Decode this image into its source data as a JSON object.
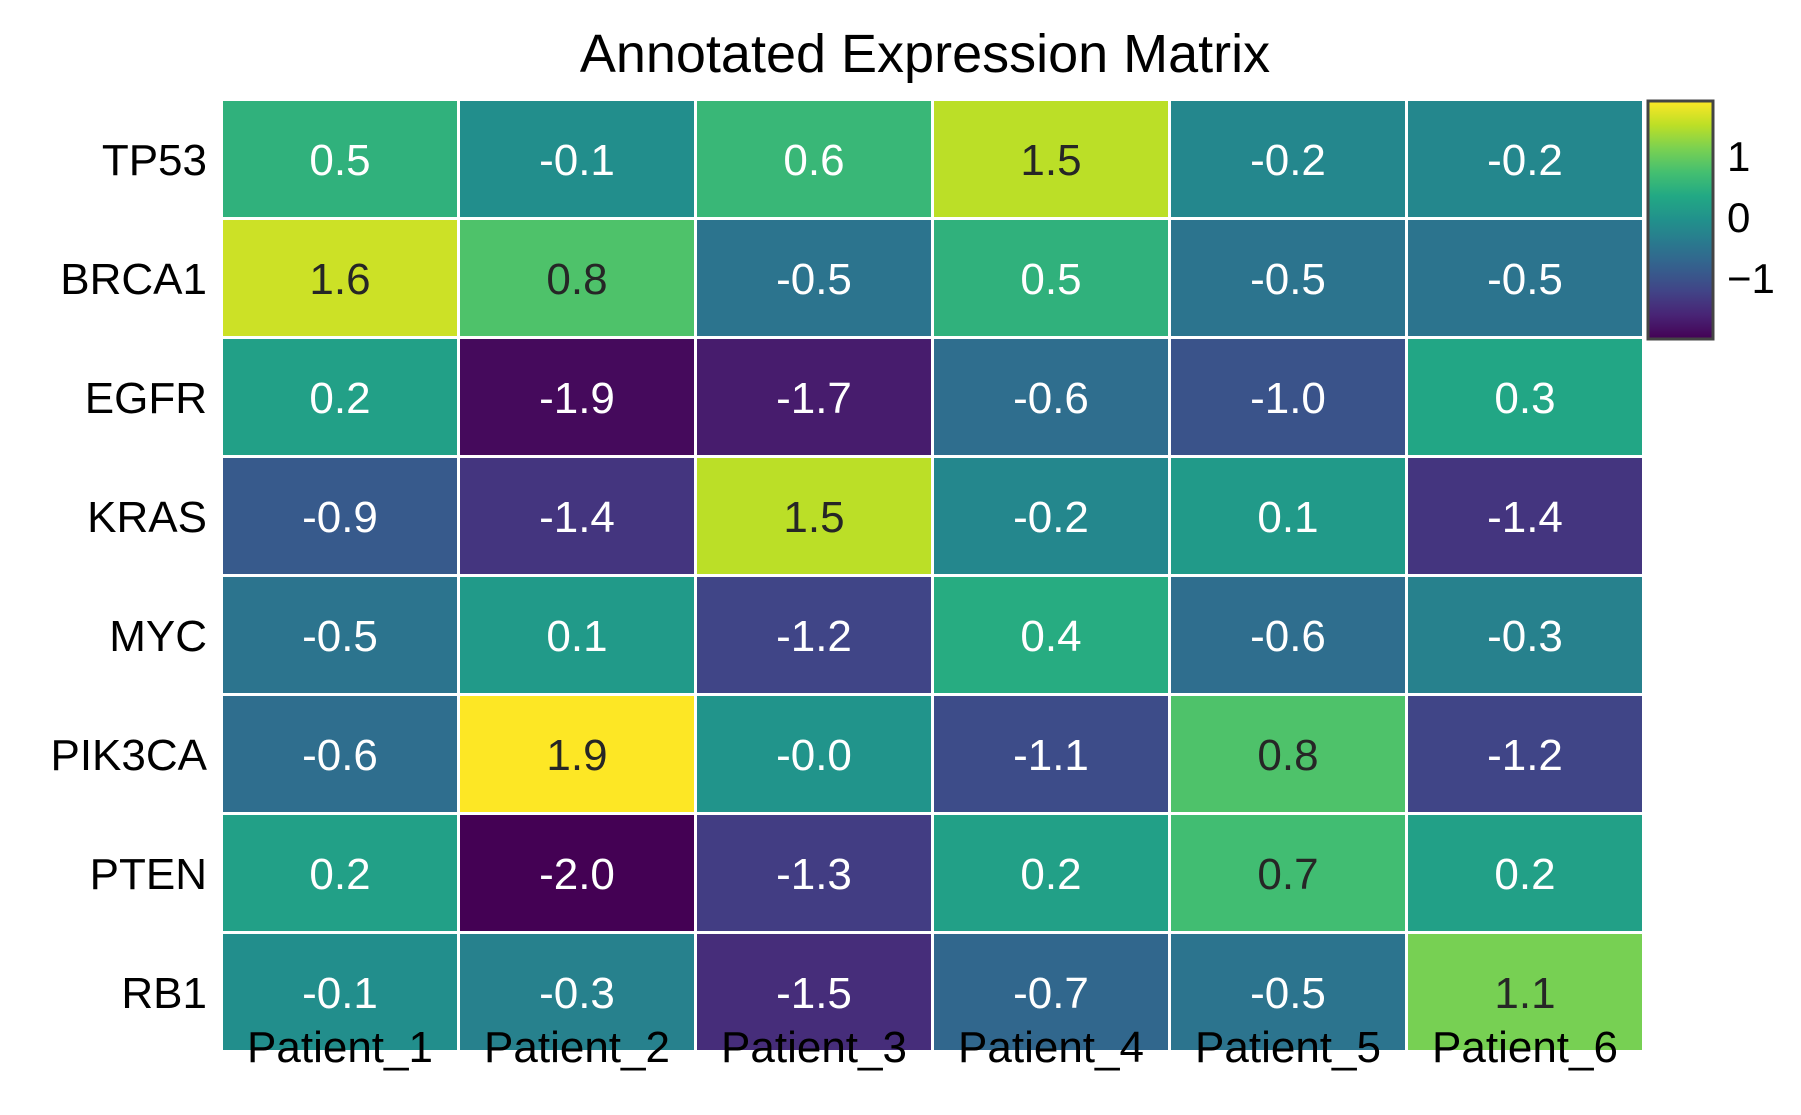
{
  "chart_data": {
    "type": "heatmap",
    "title": "Annotated Expression Matrix",
    "xlabel": "",
    "ylabel": "",
    "x_categories": [
      "Patient_1",
      "Patient_2",
      "Patient_3",
      "Patient_4",
      "Patient_5",
      "Patient_6"
    ],
    "y_categories": [
      "TP53",
      "BRCA1",
      "EGFR",
      "KRAS",
      "MYC",
      "PIK3CA",
      "PTEN",
      "RB1"
    ],
    "values": [
      [
        0.5,
        -0.1,
        0.6,
        1.5,
        -0.2,
        -0.2
      ],
      [
        1.6,
        0.8,
        -0.5,
        0.5,
        -0.5,
        -0.5
      ],
      [
        0.2,
        -1.9,
        -1.7,
        -0.6,
        -1.0,
        0.3
      ],
      [
        -0.9,
        -1.4,
        1.5,
        -0.2,
        0.1,
        -1.4
      ],
      [
        -0.5,
        0.1,
        -1.2,
        0.4,
        -0.6,
        -0.3
      ],
      [
        -0.6,
        1.9,
        -0.0,
        -1.1,
        0.8,
        -1.2
      ],
      [
        0.2,
        -2.0,
        -1.3,
        0.2,
        0.7,
        0.2
      ],
      [
        -0.1,
        -0.3,
        -1.5,
        -0.7,
        -0.5,
        1.1
      ]
    ],
    "value_labels": [
      [
        "0.5",
        "-0.1",
        "0.6",
        "1.5",
        "-0.2",
        "-0.2"
      ],
      [
        "1.6",
        "0.8",
        "-0.5",
        "0.5",
        "-0.5",
        "-0.5"
      ],
      [
        "0.2",
        "-1.9",
        "-1.7",
        "-0.6",
        "-1.0",
        "0.3"
      ],
      [
        "-0.9",
        "-1.4",
        "1.5",
        "-0.2",
        "0.1",
        "-1.4"
      ],
      [
        "-0.5",
        "0.1",
        "-1.2",
        "0.4",
        "-0.6",
        "-0.3"
      ],
      [
        "-0.6",
        "1.9",
        "-0.0",
        "-1.1",
        "0.8",
        "-1.2"
      ],
      [
        "0.2",
        "-2.0",
        "-1.3",
        "0.2",
        "0.7",
        "0.2"
      ],
      [
        "-0.1",
        "-0.3",
        "-1.5",
        "-0.7",
        "-0.5",
        "1.1"
      ]
    ],
    "colormap": "viridis",
    "color_range": [
      -2.0,
      1.9
    ],
    "colorbar": {
      "ticks": [
        1,
        0,
        -1
      ],
      "tick_labels": [
        "1",
        "0",
        "−1"
      ]
    },
    "cell_border_color": "#ffffff",
    "annotation_dark_text_color": "#262626",
    "annotation_light_text_color": "#ffffff",
    "grid": false,
    "legend": "colorbar-right"
  }
}
